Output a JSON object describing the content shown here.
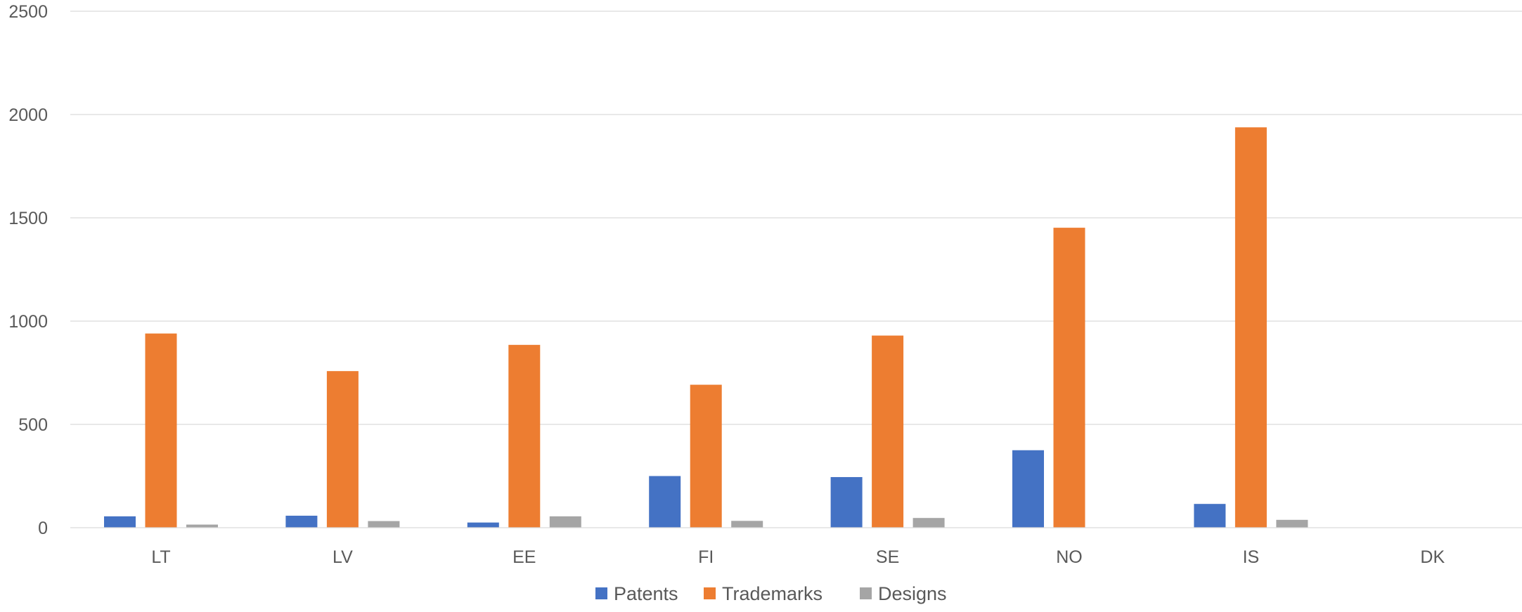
{
  "chart_data": {
    "type": "bar",
    "categories": [
      "LT",
      "LV",
      "EE",
      "FI",
      "SE",
      "NO",
      "IS",
      "DK"
    ],
    "series": [
      {
        "name": "Patents",
        "color": "#4472C4",
        "values": [
          55,
          58,
          25,
          250,
          245,
          375,
          115,
          0
        ]
      },
      {
        "name": "Trademarks",
        "color": "#ED7D31",
        "values": [
          940,
          758,
          885,
          692,
          930,
          1452,
          1938,
          0
        ]
      },
      {
        "name": "Designs",
        "color": "#A5A5A5",
        "values": [
          15,
          32,
          55,
          33,
          47,
          0,
          38,
          0
        ]
      }
    ],
    "ylim": [
      0,
      2500
    ],
    "yticks": [
      "0",
      "500",
      "1000",
      "1500",
      "2000",
      "2500"
    ],
    "grid": true,
    "legend_position": "bottom"
  }
}
